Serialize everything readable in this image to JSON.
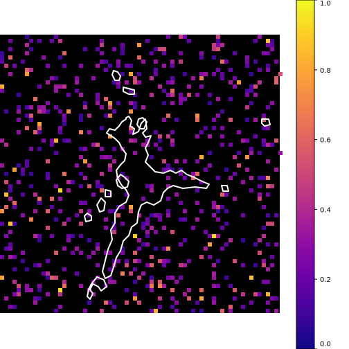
{
  "chart_data": {
    "type": "heatmap",
    "title": "",
    "xlabel": "",
    "ylabel": "",
    "colormap": "plasma",
    "background_color": "#000000",
    "contour_color": "#ffffff",
    "colorbar": {
      "orientation": "vertical",
      "placement": "right",
      "range": [
        0.0,
        1.0
      ],
      "ticks": [
        0.0,
        0.2,
        0.4,
        0.6,
        0.8,
        1.0
      ],
      "tick_labels": [
        "0.0",
        "0.2",
        "0.4",
        "0.6",
        "0.8",
        "1.0"
      ]
    },
    "grid": false,
    "axes_visible": false,
    "random_pixels_description_value_distribution": "mostly low (0.1–0.35), some mid (0.4–0.6), few high (0.7–0.9)"
  }
}
